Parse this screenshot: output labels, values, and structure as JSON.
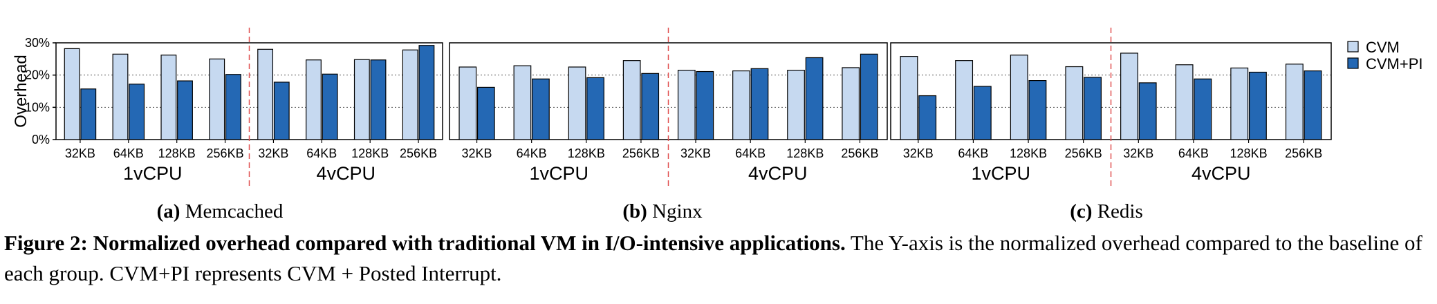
{
  "chart_data": {
    "type": "bar",
    "ylabel": "Overhead",
    "ylim": [
      0,
      30
    ],
    "yticks": [
      "0%",
      "10%",
      "20%",
      "30%"
    ],
    "grid": "horizontal dotted",
    "legend_position": "right",
    "legend": [
      "CVM",
      "CVM+PI"
    ],
    "colors": {
      "CVM": "#c6d9f0",
      "CVM+PI": "#2468b4",
      "divider": "#e05050"
    },
    "group_labels": [
      "1vCPU",
      "4vCPU"
    ],
    "categories": [
      "32KB",
      "64KB",
      "128KB",
      "256KB",
      "32KB",
      "64KB",
      "128KB",
      "256KB"
    ],
    "panels": [
      {
        "tag": "(a)",
        "name": "Memcached",
        "series": [
          {
            "name": "CVM",
            "values": [
              28.2,
              26.5,
              26.2,
              25.0,
              28.0,
              24.7,
              24.8,
              27.8
            ]
          },
          {
            "name": "CVM+PI",
            "values": [
              15.7,
              17.2,
              18.2,
              20.2,
              17.8,
              20.3,
              24.7,
              29.2
            ]
          }
        ]
      },
      {
        "tag": "(b)",
        "name": "Nginx",
        "series": [
          {
            "name": "CVM",
            "values": [
              22.5,
              22.9,
              22.5,
              24.5,
              21.5,
              21.3,
              21.5,
              22.3
            ]
          },
          {
            "name": "CVM+PI",
            "values": [
              16.2,
              18.8,
              19.2,
              20.5,
              21.1,
              22.0,
              25.4,
              26.5
            ]
          }
        ]
      },
      {
        "tag": "(c)",
        "name": "Redis",
        "series": [
          {
            "name": "CVM",
            "values": [
              25.8,
              24.5,
              26.2,
              22.6,
              26.8,
              23.2,
              22.2,
              23.4
            ]
          },
          {
            "name": "CVM+PI",
            "values": [
              13.6,
              16.5,
              18.3,
              19.3,
              17.6,
              18.8,
              20.9,
              21.3
            ]
          }
        ]
      }
    ]
  },
  "caption": {
    "label": "Figure 2: Normalized overhead compared with traditional VM in I/O-intensive applications.",
    "text": " The Y-axis is the normalized overhead compared to the baseline of each group. CVM+PI represents CVM + Posted Interrupt."
  }
}
